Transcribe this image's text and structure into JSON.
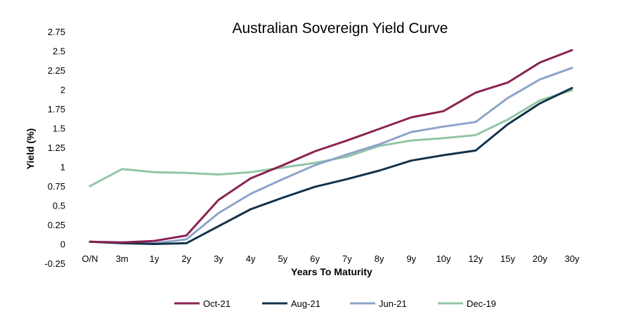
{
  "chart_data": {
    "type": "line",
    "title": "Australian Sovereign Yield Curve",
    "xlabel": "Years To Maturity",
    "ylabel": "Yield (%)",
    "ylim": [
      -0.25,
      2.75
    ],
    "yticks": [
      -0.25,
      0,
      0.25,
      0.5,
      0.75,
      1,
      1.25,
      1.5,
      1.75,
      2,
      2.25,
      2.5,
      2.75
    ],
    "ytick_labels": [
      "-0.25",
      "0",
      "0.25",
      "0.5",
      "0.75",
      "1",
      "1.25",
      "1.5",
      "1.75",
      "2",
      "2.25",
      "2.5",
      "2.75"
    ],
    "grid": false,
    "legend_position": "bottom",
    "categories": [
      "O/N",
      "3m",
      "1y",
      "2y",
      "3y",
      "4y",
      "5y",
      "6y",
      "7y",
      "8y",
      "9y",
      "10y",
      "12y",
      "15y",
      "20y",
      "30y"
    ],
    "series": [
      {
        "name": "Oct-21",
        "color": "#8b2252",
        "values": [
          0.03,
          0.02,
          0.04,
          0.11,
          0.57,
          0.85,
          1.02,
          1.2,
          1.34,
          1.49,
          1.64,
          1.72,
          1.96,
          2.09,
          2.35,
          2.51
        ]
      },
      {
        "name": "Aug-21",
        "color": "#13324a",
        "values": [
          0.03,
          0.01,
          0.0,
          0.01,
          0.23,
          0.45,
          0.6,
          0.74,
          0.84,
          0.95,
          1.08,
          1.15,
          1.21,
          1.55,
          1.82,
          2.02
        ]
      },
      {
        "name": "Jun-21",
        "color": "#8ea3c9",
        "values": [
          0.03,
          0.02,
          0.01,
          0.06,
          0.4,
          0.65,
          0.84,
          1.02,
          1.16,
          1.29,
          1.45,
          1.52,
          1.58,
          1.89,
          2.13,
          2.28
        ]
      },
      {
        "name": "Dec-19",
        "color": "#93c5a7",
        "values": [
          0.75,
          0.97,
          0.93,
          0.92,
          0.9,
          0.93,
          0.99,
          1.05,
          1.13,
          1.27,
          1.34,
          1.37,
          1.41,
          1.61,
          1.86,
          1.99
        ]
      }
    ]
  }
}
